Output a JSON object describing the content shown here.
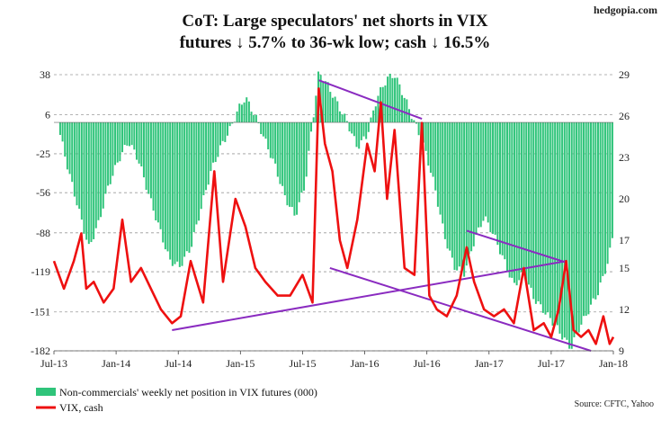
{
  "brand": "hedgopia.com",
  "title_line1": "CoT: Large speculators' net shorts in VIX",
  "title_line2": "futures ↓ 5.7% to 36-wk low; cash ↓ 16.5%",
  "source": "Source: CFTC, Yahoo",
  "colors": {
    "bars": "#2fc47a",
    "line": "#ee1010",
    "trend": "#8a2bc0"
  },
  "chart_data": {
    "type": "bar+line",
    "title": "CoT: Large speculators' net shorts in VIX futures ↓ 5.7% to 36-wk low; cash ↓ 16.5%",
    "x_ticks": [
      "Jul-13",
      "Jan-14",
      "Jul-14",
      "Jan-15",
      "Jul-15",
      "Jan-16",
      "Jul-16",
      "Jan-17",
      "Jul-17",
      "Jan-18"
    ],
    "x_range": [
      "2013-07",
      "2018-01"
    ],
    "left_axis": {
      "ticks": [
        "38",
        "6",
        "-25",
        "-56",
        "-88",
        "-119",
        "-151",
        "-182"
      ],
      "range": [
        -182,
        38
      ]
    },
    "right_axis": {
      "ticks": [
        "29",
        "26",
        "23",
        "20",
        "17",
        "15",
        "12",
        "9"
      ],
      "range": [
        9,
        29
      ]
    },
    "gridlines": "horizontal dashed",
    "legend_position": "bottom-left",
    "series": [
      {
        "name": "Non-commercials' weekly net position in VIX futures (000)",
        "type": "bar",
        "axis": "left",
        "points": [
          [
            2013.55,
            -10
          ],
          [
            2013.62,
            -40
          ],
          [
            2013.7,
            -70
          ],
          [
            2013.78,
            -100
          ],
          [
            2013.86,
            -80
          ],
          [
            2013.94,
            -50
          ],
          [
            2014.02,
            -30
          ],
          [
            2014.1,
            -15
          ],
          [
            2014.18,
            -30
          ],
          [
            2014.27,
            -60
          ],
          [
            2014.35,
            -85
          ],
          [
            2014.43,
            -110
          ],
          [
            2014.51,
            -115
          ],
          [
            2014.6,
            -100
          ],
          [
            2014.68,
            -70
          ],
          [
            2014.76,
            -40
          ],
          [
            2014.84,
            -20
          ],
          [
            2014.92,
            -5
          ],
          [
            2014.98,
            10
          ],
          [
            2015.04,
            20
          ],
          [
            2015.12,
            5
          ],
          [
            2015.2,
            -15
          ],
          [
            2015.28,
            -35
          ],
          [
            2015.36,
            -60
          ],
          [
            2015.44,
            -75
          ],
          [
            2015.52,
            -50
          ],
          [
            2015.58,
            0
          ],
          [
            2015.63,
            40
          ],
          [
            2015.7,
            30
          ],
          [
            2015.78,
            15
          ],
          [
            2015.86,
            0
          ],
          [
            2015.94,
            -20
          ],
          [
            2016.02,
            -10
          ],
          [
            2016.1,
            20
          ],
          [
            2016.18,
            35
          ],
          [
            2016.24,
            38
          ],
          [
            2016.32,
            20
          ],
          [
            2016.4,
            0
          ],
          [
            2016.48,
            -20
          ],
          [
            2016.56,
            -50
          ],
          [
            2016.64,
            -90
          ],
          [
            2016.72,
            -115
          ],
          [
            2016.8,
            -120
          ],
          [
            2016.88,
            -95
          ],
          [
            2016.96,
            -75
          ],
          [
            2017.04,
            -90
          ],
          [
            2017.12,
            -110
          ],
          [
            2017.2,
            -130
          ],
          [
            2017.28,
            -120
          ],
          [
            2017.36,
            -140
          ],
          [
            2017.44,
            -150
          ],
          [
            2017.52,
            -160
          ],
          [
            2017.6,
            -172
          ],
          [
            2017.66,
            -180
          ],
          [
            2017.72,
            -165
          ],
          [
            2017.8,
            -150
          ],
          [
            2017.88,
            -135
          ],
          [
            2017.96,
            -110
          ],
          [
            2018.0,
            -88
          ]
        ]
      },
      {
        "name": "VIX, cash",
        "type": "line",
        "axis": "right",
        "points": [
          [
            2013.5,
            15.5
          ],
          [
            2013.58,
            13.5
          ],
          [
            2013.66,
            15.5
          ],
          [
            2013.72,
            17.5
          ],
          [
            2013.76,
            13.5
          ],
          [
            2013.82,
            14
          ],
          [
            2013.9,
            12.5
          ],
          [
            2013.98,
            13.5
          ],
          [
            2014.05,
            18.5
          ],
          [
            2014.12,
            14
          ],
          [
            2014.2,
            15
          ],
          [
            2014.28,
            13.5
          ],
          [
            2014.36,
            12
          ],
          [
            2014.45,
            11
          ],
          [
            2014.52,
            11.5
          ],
          [
            2014.6,
            15.5
          ],
          [
            2014.7,
            12.5
          ],
          [
            2014.79,
            22
          ],
          [
            2014.86,
            14
          ],
          [
            2014.96,
            20
          ],
          [
            2015.04,
            18
          ],
          [
            2015.12,
            15
          ],
          [
            2015.2,
            14
          ],
          [
            2015.3,
            13
          ],
          [
            2015.4,
            13
          ],
          [
            2015.5,
            14.5
          ],
          [
            2015.58,
            12.5
          ],
          [
            2015.63,
            28
          ],
          [
            2015.68,
            24
          ],
          [
            2015.74,
            22
          ],
          [
            2015.8,
            17
          ],
          [
            2015.86,
            15
          ],
          [
            2015.94,
            18.5
          ],
          [
            2016.02,
            24
          ],
          [
            2016.08,
            22
          ],
          [
            2016.13,
            27
          ],
          [
            2016.18,
            20
          ],
          [
            2016.24,
            25
          ],
          [
            2016.32,
            15
          ],
          [
            2016.4,
            14.5
          ],
          [
            2016.46,
            25.5
          ],
          [
            2016.52,
            13
          ],
          [
            2016.58,
            12
          ],
          [
            2016.66,
            11.5
          ],
          [
            2016.74,
            13
          ],
          [
            2016.82,
            16.5
          ],
          [
            2016.88,
            14
          ],
          [
            2016.96,
            12
          ],
          [
            2017.04,
            11.5
          ],
          [
            2017.12,
            12
          ],
          [
            2017.2,
            11
          ],
          [
            2017.28,
            15
          ],
          [
            2017.36,
            10.5
          ],
          [
            2017.44,
            11
          ],
          [
            2017.5,
            10
          ],
          [
            2017.56,
            12
          ],
          [
            2017.62,
            15.5
          ],
          [
            2017.68,
            10.5
          ],
          [
            2017.74,
            10
          ],
          [
            2017.8,
            10.5
          ],
          [
            2017.86,
            9.5
          ],
          [
            2017.92,
            11.5
          ],
          [
            2017.97,
            9.5
          ],
          [
            2018.0,
            10
          ]
        ]
      }
    ],
    "trendlines": [
      {
        "from": [
          2014.45,
          10.5
        ],
        "to": [
          2017.62,
          15.5
        ],
        "axis": "right"
      },
      {
        "from": [
          2015.63,
          28.6
        ],
        "to": [
          2016.46,
          25.8
        ],
        "axis": "right"
      },
      {
        "from": [
          2015.72,
          15.0
        ],
        "to": [
          2017.82,
          9.0
        ],
        "axis": "right"
      },
      {
        "from": [
          2016.82,
          17.7
        ],
        "to": [
          2017.62,
          15.4
        ],
        "axis": "right"
      }
    ]
  }
}
